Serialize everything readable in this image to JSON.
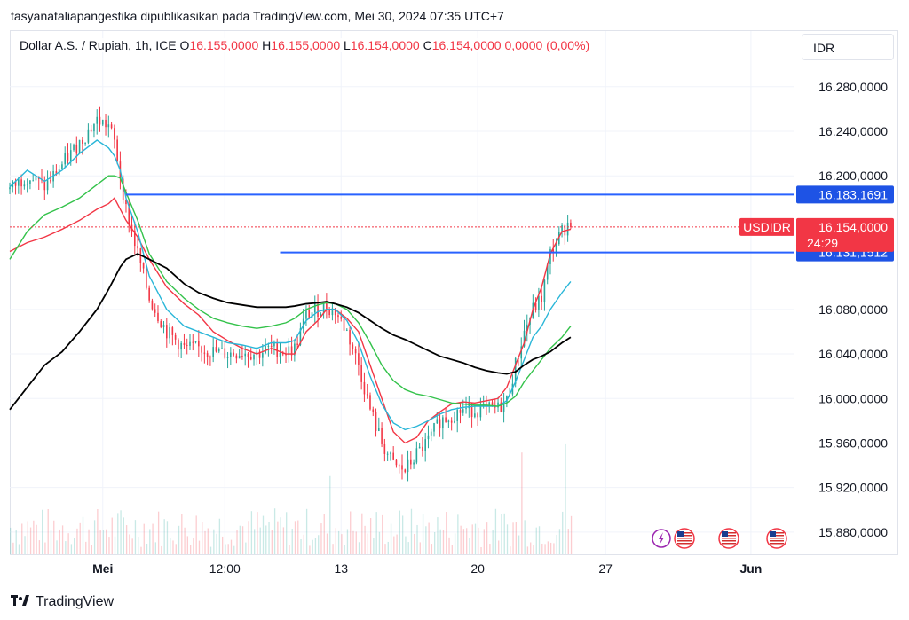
{
  "caption": "tasyanataliapangestika dipublikasikan pada TradingView.com, Mei 30, 2024 07:35 UTC+7",
  "legend": {
    "symbol": "Dollar A.S. / Rupiah, 1h, ICE",
    "o_label": "O",
    "o_value": "16.155,0000",
    "h_label": "H",
    "h_value": "16.155,0000",
    "l_label": "L",
    "l_value": "16.154,0000",
    "c_label": "C",
    "c_value": "16.154,0000",
    "change": "0,0000 (0,00%)"
  },
  "currency": "IDR",
  "brand": "TradingView",
  "colors": {
    "candle_up": "#26a69a",
    "candle_down": "#f23645",
    "ema_fast": "#f23645",
    "ema_mid": "#29b6d8",
    "ema_slow": "#33c24a",
    "ma_long": "#000000",
    "level_line": "#2962ff",
    "price_tag": "#f23645",
    "level_tag": "#1e53e5"
  },
  "chart_data": {
    "type": "line",
    "title": "Dollar A.S. / Rupiah, 1h, ICE",
    "x_ticks": [
      "Mei",
      "12:00",
      "13",
      "20",
      "27",
      "Jun"
    ],
    "y_ticks": [
      "15.880,0000",
      "15.920,0000",
      "15.960,0000",
      "16.000,0000",
      "16.040,0000",
      "16.080,0000",
      "16.200,0000",
      "16.240,0000",
      "16.280,0000"
    ],
    "ylim": [
      15860,
      16330
    ],
    "last_price": {
      "symbol": "USDIDR",
      "value": "16.154,0000",
      "countdown": "24:29"
    },
    "horizontal_levels": [
      {
        "value": 16183.1691,
        "label": "16.183,1691"
      },
      {
        "value": 16131.1512,
        "label": "16.131,1512"
      }
    ],
    "event_markers": [
      "lightning-icon",
      "us-flag-icon",
      "us-flag-icon",
      "us-flag-icon"
    ],
    "series": [
      {
        "values": [
          [
            0,
            16132
          ],
          [
            6,
            16140
          ],
          [
            12,
            16145
          ],
          [
            18,
            16152
          ],
          [
            24,
            16160
          ],
          [
            30,
            16170
          ],
          [
            34,
            16175
          ],
          [
            36,
            16180
          ],
          [
            38,
            16170
          ],
          [
            40,
            16160
          ],
          [
            44,
            16145
          ],
          [
            48,
            16125
          ],
          [
            54,
            16100
          ],
          [
            60,
            16085
          ],
          [
            65,
            16075
          ],
          [
            70,
            16060
          ],
          [
            75,
            16052
          ],
          [
            80,
            16045
          ],
          [
            85,
            16040
          ],
          [
            90,
            16045
          ],
          [
            95,
            16040
          ],
          [
            98,
            16040
          ],
          [
            102,
            16060
          ],
          [
            106,
            16070
          ],
          [
            109,
            16080
          ],
          [
            112,
            16080
          ],
          [
            116,
            16072
          ],
          [
            120,
            16060
          ],
          [
            124,
            16030
          ],
          [
            128,
            16000
          ],
          [
            132,
            15970
          ],
          [
            136,
            15960
          ],
          [
            140,
            15965
          ],
          [
            144,
            15980
          ],
          [
            148,
            15988
          ],
          [
            152,
            15995
          ],
          [
            156,
            15997
          ],
          [
            160,
            15996
          ],
          [
            164,
            15998
          ],
          [
            168,
            16000
          ],
          [
            171,
            16010
          ],
          [
            174,
            16030
          ],
          [
            177,
            16050
          ],
          [
            180,
            16080
          ],
          [
            183,
            16100
          ],
          [
            186,
            16130
          ],
          [
            190,
            16150
          ],
          [
            193,
            16152
          ]
        ]
      },
      {
        "values": [
          [
            0,
            16188
          ],
          [
            6,
            16200
          ],
          [
            12,
            16190
          ],
          [
            18,
            16210
          ],
          [
            24,
            16230
          ],
          [
            30,
            16250
          ],
          [
            34,
            16245
          ],
          [
            36,
            16230
          ],
          [
            38,
            16200
          ],
          [
            40,
            16170
          ],
          [
            44,
            16130
          ],
          [
            48,
            16090
          ],
          [
            54,
            16060
          ],
          [
            60,
            16045
          ],
          [
            65,
            16045
          ],
          [
            70,
            16042
          ],
          [
            75,
            16040
          ],
          [
            80,
            16042
          ],
          [
            85,
            16040
          ],
          [
            90,
            16045
          ],
          [
            95,
            16042
          ],
          [
            98,
            16045
          ],
          [
            102,
            16075
          ],
          [
            106,
            16080
          ],
          [
            109,
            16082
          ],
          [
            112,
            16078
          ],
          [
            116,
            16060
          ],
          [
            120,
            16030
          ],
          [
            124,
            15990
          ],
          [
            128,
            15960
          ],
          [
            132,
            15940
          ],
          [
            136,
            15935
          ],
          [
            140,
            15950
          ],
          [
            144,
            15962
          ],
          [
            148,
            15980
          ],
          [
            152,
            15985
          ],
          [
            156,
            15990
          ],
          [
            160,
            15990
          ],
          [
            164,
            15990
          ],
          [
            168,
            15991
          ],
          [
            171,
            15998
          ],
          [
            174,
            16030
          ],
          [
            177,
            16060
          ],
          [
            180,
            16080
          ],
          [
            183,
            16090
          ],
          [
            186,
            16130
          ],
          [
            190,
            16150
          ],
          [
            193,
            16160
          ]
        ]
      },
      {
        "values": [
          [
            0,
            16190
          ],
          [
            6,
            16205
          ],
          [
            12,
            16195
          ],
          [
            18,
            16205
          ],
          [
            24,
            16220
          ],
          [
            30,
            16232
          ],
          [
            34,
            16225
          ],
          [
            36,
            16218
          ],
          [
            38,
            16205
          ],
          [
            40,
            16180
          ],
          [
            44,
            16150
          ],
          [
            48,
            16110
          ],
          [
            54,
            16080
          ],
          [
            60,
            16065
          ],
          [
            65,
            16060
          ],
          [
            70,
            16055
          ],
          [
            75,
            16050
          ],
          [
            80,
            16048
          ],
          [
            85,
            16045
          ],
          [
            90,
            16050
          ],
          [
            95,
            16050
          ],
          [
            98,
            16052
          ],
          [
            102,
            16070
          ],
          [
            106,
            16078
          ],
          [
            109,
            16080
          ],
          [
            112,
            16080
          ],
          [
            116,
            16070
          ],
          [
            120,
            16050
          ],
          [
            124,
            16020
          ],
          [
            128,
            15995
          ],
          [
            132,
            15978
          ],
          [
            136,
            15972
          ],
          [
            140,
            15975
          ],
          [
            144,
            15980
          ],
          [
            148,
            15986
          ],
          [
            152,
            15990
          ],
          [
            156,
            15992
          ],
          [
            160,
            15993
          ],
          [
            164,
            15993
          ],
          [
            168,
            15993
          ],
          [
            171,
            15998
          ],
          [
            174,
            16015
          ],
          [
            177,
            16035
          ],
          [
            180,
            16055
          ],
          [
            183,
            16065
          ],
          [
            186,
            16080
          ],
          [
            190,
            16095
          ],
          [
            193,
            16105
          ]
        ]
      },
      {
        "values": [
          [
            0,
            16125
          ],
          [
            6,
            16150
          ],
          [
            12,
            16165
          ],
          [
            18,
            16172
          ],
          [
            24,
            16180
          ],
          [
            30,
            16192
          ],
          [
            34,
            16200
          ],
          [
            36,
            16200
          ],
          [
            38,
            16198
          ],
          [
            40,
            16185
          ],
          [
            44,
            16160
          ],
          [
            48,
            16130
          ],
          [
            54,
            16105
          ],
          [
            60,
            16090
          ],
          [
            65,
            16080
          ],
          [
            70,
            16072
          ],
          [
            75,
            16068
          ],
          [
            80,
            16065
          ],
          [
            85,
            16063
          ],
          [
            90,
            16065
          ],
          [
            95,
            16068
          ],
          [
            98,
            16072
          ],
          [
            102,
            16080
          ],
          [
            106,
            16084
          ],
          [
            109,
            16086
          ],
          [
            112,
            16085
          ],
          [
            116,
            16080
          ],
          [
            120,
            16068
          ],
          [
            124,
            16050
          ],
          [
            128,
            16030
          ],
          [
            132,
            16016
          ],
          [
            136,
            16008
          ],
          [
            140,
            16004
          ],
          [
            144,
            16002
          ],
          [
            148,
            15999
          ],
          [
            152,
            15996
          ],
          [
            156,
            15995
          ],
          [
            160,
            15994
          ],
          [
            164,
            15994
          ],
          [
            168,
            15993
          ],
          [
            171,
            15996
          ],
          [
            174,
            16002
          ],
          [
            177,
            16015
          ],
          [
            180,
            16025
          ],
          [
            183,
            16035
          ],
          [
            186,
            16045
          ],
          [
            190,
            16055
          ],
          [
            193,
            16065
          ]
        ]
      },
      {
        "values": [
          [
            0,
            15990
          ],
          [
            6,
            16010
          ],
          [
            12,
            16030
          ],
          [
            18,
            16042
          ],
          [
            24,
            16060
          ],
          [
            30,
            16080
          ],
          [
            34,
            16098
          ],
          [
            36,
            16108
          ],
          [
            38,
            16118
          ],
          [
            40,
            16125
          ],
          [
            44,
            16130
          ],
          [
            48,
            16125
          ],
          [
            54,
            16117
          ],
          [
            60,
            16103
          ],
          [
            65,
            16095
          ],
          [
            70,
            16090
          ],
          [
            75,
            16086
          ],
          [
            80,
            16084
          ],
          [
            85,
            16082
          ],
          [
            90,
            16082
          ],
          [
            95,
            16082
          ],
          [
            98,
            16083
          ],
          [
            102,
            16085
          ],
          [
            106,
            16086
          ],
          [
            109,
            16087
          ],
          [
            112,
            16085
          ],
          [
            116,
            16082
          ],
          [
            120,
            16077
          ],
          [
            124,
            16070
          ],
          [
            128,
            16063
          ],
          [
            132,
            16057
          ],
          [
            136,
            16053
          ],
          [
            140,
            16048
          ],
          [
            144,
            16043
          ],
          [
            148,
            16038
          ],
          [
            152,
            16035
          ],
          [
            156,
            16032
          ],
          [
            160,
            16028
          ],
          [
            164,
            16025
          ],
          [
            168,
            16023
          ],
          [
            171,
            16022
          ],
          [
            174,
            16024
          ],
          [
            177,
            16030
          ],
          [
            180,
            16035
          ],
          [
            183,
            16038
          ],
          [
            186,
            16042
          ],
          [
            190,
            16050
          ],
          [
            193,
            16055
          ]
        ]
      }
    ]
  }
}
